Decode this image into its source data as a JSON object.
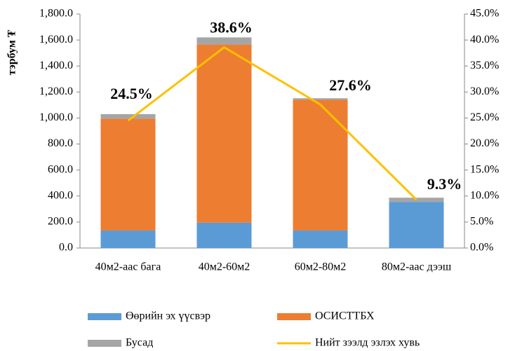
{
  "chart_data": {
    "type": "bar",
    "stacked": true,
    "y_label": "тэрбум ₮",
    "categories": [
      "40м2-аас бага",
      "40м2-60м2",
      "60м2-80м2",
      "80м2-аас дээш"
    ],
    "series": [
      {
        "name": "Өөрийн эх үүсвэр",
        "color": "#5b9bd5",
        "values": [
          135,
          195,
          135,
          355
        ]
      },
      {
        "name": "ОСИСТТБХ",
        "color": "#ed7d31",
        "values": [
          860,
          1370,
          1005,
          0
        ]
      },
      {
        "name": "Бусад",
        "color": "#a5a5a5",
        "values": [
          35,
          55,
          12,
          32
        ]
      },
      {
        "name": "Нийт зээлд эзлэх хувь",
        "color": "#ffc000",
        "type": "line",
        "axis": "y2",
        "values": [
          24.5,
          38.6,
          27.6,
          9.3
        ],
        "value_labels": [
          "24.5%",
          "38.6%",
          "27.6%",
          "9.3%"
        ]
      }
    ],
    "ylim": [
      0,
      1800
    ],
    "yticks": [
      {
        "value": 0,
        "label": "0.0"
      },
      {
        "value": 200,
        "label": "200.0"
      },
      {
        "value": 400,
        "label": "400.0"
      },
      {
        "value": 600,
        "label": "600.0"
      },
      {
        "value": 800,
        "label": "800.0"
      },
      {
        "value": 1000,
        "label": "1,000.0"
      },
      {
        "value": 1200,
        "label": "1,200.0"
      },
      {
        "value": 1400,
        "label": "1,400.0"
      },
      {
        "value": 1600,
        "label": "1,600.0"
      },
      {
        "value": 1800,
        "label": "1,800.0"
      }
    ],
    "y2lim": [
      0,
      45
    ],
    "y2ticks": [
      {
        "value": 0,
        "label": "0.0%"
      },
      {
        "value": 5,
        "label": "5.0%"
      },
      {
        "value": 10,
        "label": "10.0%"
      },
      {
        "value": 15,
        "label": "15.0%"
      },
      {
        "value": 20,
        "label": "20.0%"
      },
      {
        "value": 25,
        "label": "25.0%"
      },
      {
        "value": 30,
        "label": "30.0%"
      },
      {
        "value": 35,
        "label": "35.0%"
      },
      {
        "value": 40,
        "label": "40.0%"
      },
      {
        "value": 45,
        "label": "45.0%"
      }
    ],
    "legend": "bottom"
  }
}
